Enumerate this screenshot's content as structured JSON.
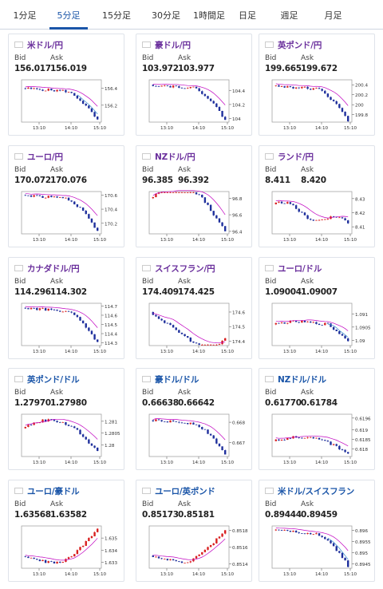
{
  "tabs": [
    {
      "label": "1分足",
      "active": false
    },
    {
      "label": "5分足",
      "active": true
    },
    {
      "label": "15分足",
      "active": false
    },
    {
      "label": "30分足",
      "active": false
    },
    {
      "label": "1時間足",
      "active": false
    },
    {
      "label": "日足",
      "active": false
    },
    {
      "label": "週足",
      "active": false
    },
    {
      "label": "月足",
      "active": false
    }
  ],
  "bid_label": "Bid",
  "ask_label": "Ask",
  "x_ticks": [
    "13:10",
    "14:10",
    "15:10"
  ],
  "colors": {
    "up": "#d81e1e",
    "down": "#1e2f9c",
    "ma": "#c000c0",
    "ma2": "#3a8fd0",
    "purple": "#6a2f9c",
    "blue": "#1a55a8"
  },
  "cards": [
    {
      "id": "usd-jpy",
      "pair": "米ドル/円",
      "flag": "us",
      "style": "purple",
      "bid": "156.017",
      "ask": "156.019",
      "chart_data": {
        "type": "candlestick",
        "y_ticks": [
          "156.4",
          "156.2"
        ],
        "ylim": [
          156.0,
          156.5
        ],
        "start": 156.4,
        "end": 156.02,
        "shape": "drop",
        "ma2": true
      }
    },
    {
      "id": "aud-jpy",
      "pair": "豪ドル/円",
      "flag": "au",
      "style": "purple",
      "bid": "103.972",
      "ask": "103.977",
      "chart_data": {
        "type": "candlestick",
        "y_ticks": [
          "104.4",
          "104.2",
          "104"
        ],
        "ylim": [
          103.95,
          104.55
        ],
        "start": 104.48,
        "end": 103.98,
        "shape": "drop"
      }
    },
    {
      "id": "gbp-jpy",
      "pair": "英ポンド/円",
      "flag": "gb",
      "style": "purple",
      "bid": "199.665",
      "ask": "199.672",
      "chart_data": {
        "type": "candlestick",
        "y_ticks": [
          "200.4",
          "200.2",
          "200",
          "199.8"
        ],
        "ylim": [
          199.65,
          200.5
        ],
        "start": 200.38,
        "end": 199.68,
        "shape": "drop"
      }
    },
    {
      "id": "eur-jpy",
      "pair": "ユーロ/円",
      "flag": "eu",
      "style": "purple",
      "bid": "170.072",
      "ask": "170.076",
      "chart_data": {
        "type": "candlestick",
        "y_ticks": [
          "170.6",
          "170.4",
          "170.2"
        ],
        "ylim": [
          170.05,
          170.65
        ],
        "start": 170.6,
        "end": 170.08,
        "shape": "drop"
      }
    },
    {
      "id": "nzd-jpy",
      "pair": "NZドル/円",
      "flag": "nz",
      "style": "purple",
      "bid": "96.385",
      "ask": "96.392",
      "chart_data": {
        "type": "candlestick",
        "y_ticks": [
          "96.8",
          "96.6",
          "96.4"
        ],
        "ylim": [
          96.37,
          96.88
        ],
        "start": 96.8,
        "end": 96.4,
        "shape": "hump"
      }
    },
    {
      "id": "zar-jpy",
      "pair": "ランド/円",
      "flag": "za",
      "style": "purple",
      "bid": "8.411",
      "ask": "8.420",
      "chart_data": {
        "type": "candlestick",
        "y_ticks": [
          "8.43",
          "8.42",
          "8.41"
        ],
        "ylim": [
          8.405,
          8.435
        ],
        "start": 8.426,
        "end": 8.413,
        "shape": "flat"
      }
    },
    {
      "id": "cad-jpy",
      "pair": "カナダドル/円",
      "flag": "ca",
      "style": "purple",
      "bid": "114.296",
      "ask": "114.302",
      "chart_data": {
        "type": "candlestick",
        "y_ticks": [
          "114.7",
          "114.6",
          "114.5",
          "114.4",
          "114.3"
        ],
        "ylim": [
          114.27,
          114.73
        ],
        "start": 114.68,
        "end": 114.3,
        "shape": "drop"
      }
    },
    {
      "id": "chf-jpy",
      "pair": "スイスフラン/円",
      "flag": "ch",
      "style": "purple",
      "bid": "174.409",
      "ask": "174.425",
      "chart_data": {
        "type": "candlestick",
        "y_ticks": [
          "174.6",
          "174.5",
          "174.4"
        ],
        "ylim": [
          174.37,
          174.66
        ],
        "start": 174.6,
        "end": 174.42,
        "shape": "rebound"
      }
    },
    {
      "id": "eur-usd",
      "pair": "ユーロ/ドル",
      "flag": "eu",
      "style": "purple",
      "bid": "1.09004",
      "ask": "1.09007",
      "chart_data": {
        "type": "candlestick",
        "y_ticks": [
          "1.091",
          "1.0905",
          "1.09"
        ],
        "ylim": [
          1.0898,
          1.0914
        ],
        "start": 1.0906,
        "end": 1.09,
        "shape": "rise_drop",
        "ma2": true
      }
    },
    {
      "id": "gbp-usd",
      "pair": "英ポンド/ドル",
      "flag": "gb",
      "style": "blue",
      "bid": "1.27970",
      "ask": "1.27980",
      "chart_data": {
        "type": "candlestick",
        "y_ticks": [
          "1.281",
          "1.2805",
          "1.28"
        ],
        "ylim": [
          1.2795,
          1.2813
        ],
        "start": 1.2807,
        "end": 1.2797,
        "shape": "hump"
      }
    },
    {
      "id": "aud-usd",
      "pair": "豪ドル/ドル",
      "flag": "au",
      "style": "blue",
      "bid": "0.66638",
      "ask": "0.66642",
      "chart_data": {
        "type": "candlestick",
        "y_ticks": [
          "0.668",
          "0.667"
        ],
        "ylim": [
          0.6663,
          0.6684
        ],
        "start": 0.6681,
        "end": 0.6664,
        "shape": "drop"
      }
    },
    {
      "id": "nzd-usd",
      "pair": "NZドル/ドル",
      "flag": "nz",
      "style": "blue",
      "bid": "0.61770",
      "ask": "0.61784",
      "chart_data": {
        "type": "candlestick",
        "y_ticks": [
          "0.6196",
          "0.619",
          "0.6185",
          "0.618"
        ],
        "ylim": [
          0.6176,
          0.6198
        ],
        "start": 0.6184,
        "end": 0.6178,
        "shape": "hump"
      }
    },
    {
      "id": "eur-aud",
      "pair": "ユーロ/豪ドル",
      "flag": "eu",
      "style": "blue",
      "bid": "1.63568",
      "ask": "1.63582",
      "chart_data": {
        "type": "candlestick",
        "y_ticks": [
          "1.635",
          "1.634",
          "1.633"
        ],
        "ylim": [
          1.6325,
          1.636
        ],
        "start": 1.6335,
        "end": 1.6357,
        "shape": "rise"
      }
    },
    {
      "id": "eur-gbp",
      "pair": "ユーロ/英ポンド",
      "flag": "eu",
      "style": "blue",
      "bid": "0.85173",
      "ask": "0.85181",
      "chart_data": {
        "type": "candlestick",
        "y_ticks": [
          "0.8518",
          "0.8516",
          "0.8514"
        ],
        "ylim": [
          0.85135,
          0.85185
        ],
        "start": 0.8515,
        "end": 0.8518,
        "shape": "rise"
      }
    },
    {
      "id": "usd-chf",
      "pair": "米ドル/スイスフラン",
      "flag": "us",
      "style": "blue",
      "bid": "0.89444",
      "ask": "0.89459",
      "chart_data": {
        "type": "candlestick",
        "y_ticks": [
          "0.896",
          "0.8955",
          "0.895",
          "0.8945"
        ],
        "ylim": [
          0.8943,
          0.8962
        ],
        "start": 0.896,
        "end": 0.8944,
        "shape": "drop",
        "ma2": true
      }
    }
  ]
}
